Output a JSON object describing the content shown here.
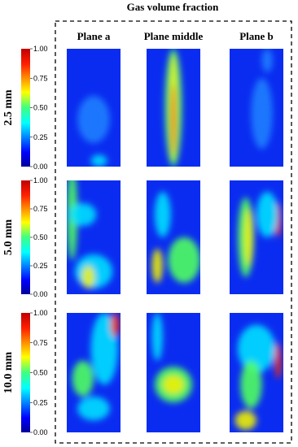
{
  "title": "Gas volume fraction",
  "columns": [
    "Plane a",
    "Plane middle",
    "Plane b"
  ],
  "rows": [
    "2.5 mm",
    "5.0 mm",
    "10.0 mm"
  ],
  "colorbar_ticks": [
    "1.00",
    "0.75",
    "0.50",
    "0.25",
    "0.00"
  ]
}
